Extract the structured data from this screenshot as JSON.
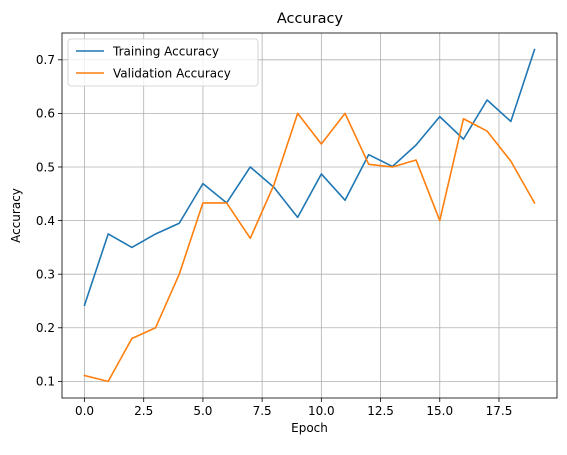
{
  "chart_data": {
    "type": "line",
    "title": "Accuracy",
    "xlabel": "Epoch",
    "ylabel": "Accuracy",
    "xlim": [
      -0.95,
      19.95
    ],
    "ylim": [
      0.069,
      0.75
    ],
    "xticks": [
      0.0,
      2.5,
      5.0,
      7.5,
      10.0,
      12.5,
      15.0,
      17.5
    ],
    "xtick_labels": [
      "0.0",
      "2.5",
      "5.0",
      "7.5",
      "10.0",
      "12.5",
      "15.0",
      "17.5"
    ],
    "yticks": [
      0.1,
      0.2,
      0.3,
      0.4,
      0.5,
      0.6,
      0.7
    ],
    "ytick_labels": [
      "0.1",
      "0.2",
      "0.3",
      "0.4",
      "0.5",
      "0.6",
      "0.7"
    ],
    "grid": true,
    "legend_position": "top-left",
    "x": [
      0,
      1,
      2,
      3,
      4,
      5,
      6,
      7,
      8,
      9,
      10,
      11,
      12,
      13,
      14,
      15,
      16,
      17,
      18,
      19
    ],
    "series": [
      {
        "name": "Training Accuracy",
        "color": "#1f77b4",
        "values": [
          0.242,
          0.375,
          0.35,
          0.375,
          0.395,
          0.469,
          0.433,
          0.5,
          0.462,
          0.406,
          0.487,
          0.438,
          0.523,
          0.501,
          0.541,
          0.594,
          0.552,
          0.625,
          0.585,
          0.719
        ]
      },
      {
        "name": "Validation Accuracy",
        "color": "#ff7f0e",
        "values": [
          0.111,
          0.1,
          0.18,
          0.2,
          0.3,
          0.433,
          0.433,
          0.367,
          0.467,
          0.6,
          0.543,
          0.6,
          0.505,
          0.5,
          0.513,
          0.4,
          0.59,
          0.567,
          0.511,
          0.433
        ]
      }
    ]
  }
}
